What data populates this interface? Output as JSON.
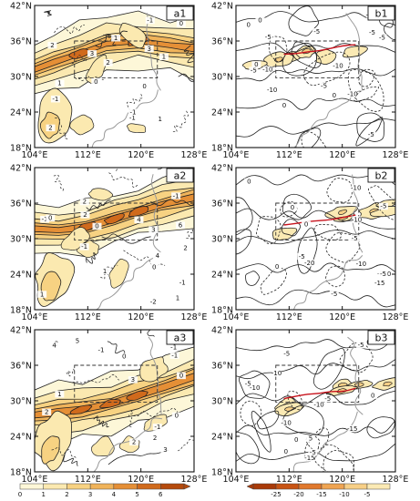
{
  "figure": {
    "panels": [
      {
        "id": "a1",
        "label": "a1",
        "kind": "a"
      },
      {
        "id": "b1",
        "label": "b1",
        "kind": "b"
      },
      {
        "id": "a2",
        "label": "a2",
        "kind": "a"
      },
      {
        "id": "b2",
        "label": "b2",
        "kind": "b"
      },
      {
        "id": "a3",
        "label": "a3",
        "kind": "a"
      },
      {
        "id": "b3",
        "label": "b3",
        "kind": "b"
      }
    ],
    "lat_ticks": [
      "42°N",
      "36°N",
      "30°N",
      "24°N",
      "18°N"
    ],
    "lon_ticks": [
      "104°E",
      "112°E",
      "120°E",
      "128°E"
    ],
    "contour_labels": {
      "a1": [
        "3",
        "-1",
        "2",
        "1",
        "3",
        "-1",
        "1",
        "2",
        "0",
        "1",
        "-1",
        "0",
        "-1",
        "0",
        "2",
        "1"
      ],
      "b1": [
        "-10",
        "-5",
        "0",
        "-5",
        "-10",
        "-15",
        "-10",
        "-5",
        "0",
        "-5",
        "-10",
        "-5",
        "0",
        "-5",
        "0",
        "-5",
        "0"
      ],
      "a2": [
        "-2",
        "-1",
        "0",
        "-1",
        "2",
        "4",
        "4",
        "6",
        "2",
        "1",
        "3",
        "-1",
        "1",
        "0",
        "1",
        "2",
        "-1",
        "0"
      ],
      "b2": [
        "-10",
        "-5",
        "0",
        "-5",
        "-10",
        "-20",
        "-15",
        "-5",
        "-15",
        "-10",
        "0",
        "-5",
        "-10",
        "0",
        "-5",
        "0"
      ],
      "a3": [
        "-1",
        "0",
        "-2",
        "-1",
        "2",
        "5",
        "4",
        "3",
        "3",
        "2",
        "-1",
        "0",
        "1",
        "-1",
        "0",
        "2"
      ],
      "b3": [
        "-5",
        "-10",
        "-15",
        "0",
        "-15",
        "-5",
        "-10",
        "-5",
        "0",
        "-10",
        "-5",
        "0",
        "5",
        "-5",
        "0",
        "-10"
      ]
    },
    "colorbar_left": {
      "ticks": [
        "0",
        "1",
        "2",
        "3",
        "4",
        "5",
        "6"
      ],
      "colors": [
        "#fdf7d8",
        "#fbe9b0",
        "#f7d282",
        "#f0b35a",
        "#e58f36",
        "#d06a1c",
        "#b54a0c"
      ]
    },
    "colorbar_right": {
      "ticks": [
        "-25",
        "-20",
        "-15",
        "-10",
        "-5"
      ],
      "colors": [
        "#a93a08",
        "#c85414",
        "#e0782c",
        "#efa452",
        "#f7cf86",
        "#fbeab4"
      ]
    }
  }
}
